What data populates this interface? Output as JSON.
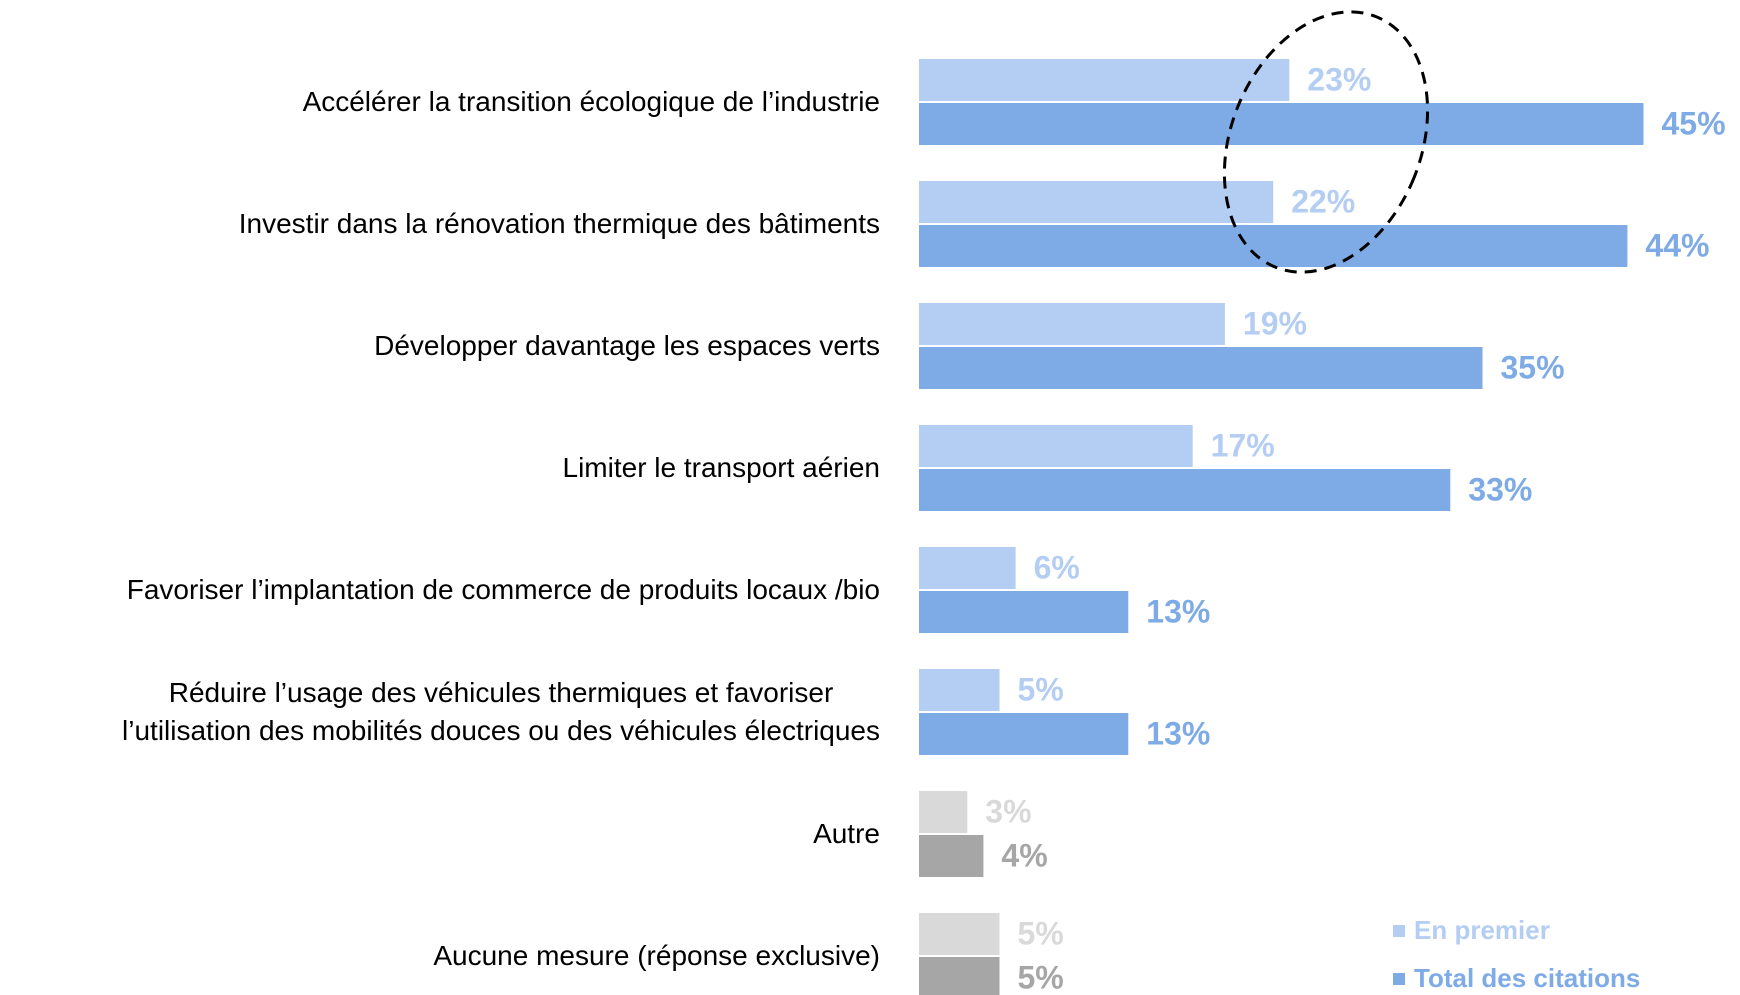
{
  "chart_data": {
    "type": "bar",
    "orientation": "horizontal",
    "categories": [
      "Accélérer la transition écologique de l’industrie",
      "Investir dans la rénovation thermique des bâtiments",
      "Développer davantage les espaces verts",
      "Limiter le transport aérien",
      "Favoriser l’implantation de commerce de produits locaux /bio",
      "Réduire l’usage des véhicules thermiques et favoriser\nl’utilisation des mobilités douces ou des véhicules électriques",
      "Autre",
      "Aucune mesure (réponse exclusive)"
    ],
    "series": [
      {
        "name": "En premier",
        "color": "#b4cdf2",
        "colors": [
          "#b4cdf2",
          "#b4cdf2",
          "#b4cdf2",
          "#b4cdf2",
          "#b4cdf2",
          "#b4cdf2",
          "#d9d9d9",
          "#d9d9d9"
        ],
        "values": [
          23,
          22,
          19,
          17,
          6,
          5,
          3,
          5
        ],
        "value_labels": [
          "23%",
          "22%",
          "19%",
          "17%",
          "6%",
          "5%",
          "3%",
          "5%"
        ]
      },
      {
        "name": "Total des citations",
        "color": "#7eabe6",
        "colors": [
          "#7eabe6",
          "#7eabe6",
          "#7eabe6",
          "#7eabe6",
          "#7eabe6",
          "#7eabe6",
          "#a6a6a6",
          "#a6a6a6"
        ],
        "values": [
          45,
          44,
          35,
          33,
          13,
          13,
          4,
          5
        ],
        "value_labels": [
          "45%",
          "44%",
          "35%",
          "33%",
          "13%",
          "13%",
          "4%",
          "5%"
        ]
      }
    ],
    "legend": "bottom-right"
  }
}
